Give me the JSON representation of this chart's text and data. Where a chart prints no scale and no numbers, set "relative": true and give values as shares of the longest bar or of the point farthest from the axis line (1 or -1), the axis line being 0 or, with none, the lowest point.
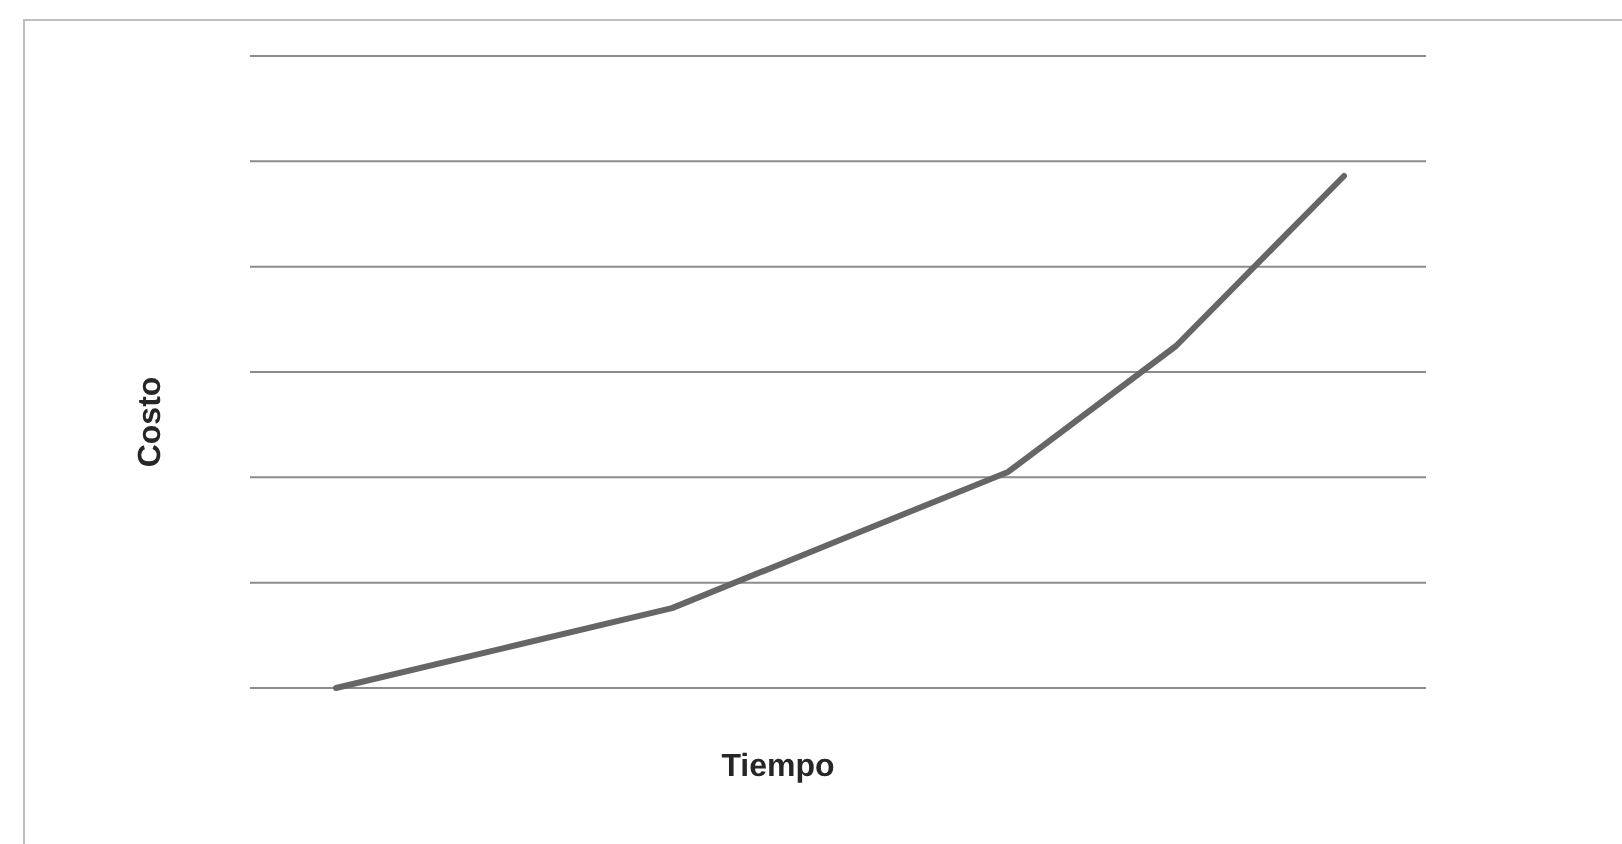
{
  "chart_data": {
    "type": "line",
    "xlabel": "Tiempo",
    "ylabel": "Costo",
    "relative": true,
    "grid": "y",
    "marker": "none",
    "line_style": "solid",
    "categories": [
      null,
      null,
      null,
      null,
      null,
      null,
      null
    ],
    "series": [
      {
        "color": "#666666",
        "values": [
          0,
          0.078,
          0.156,
          0.289,
          0.422,
          0.668,
          1
        ]
      }
    ]
  }
}
